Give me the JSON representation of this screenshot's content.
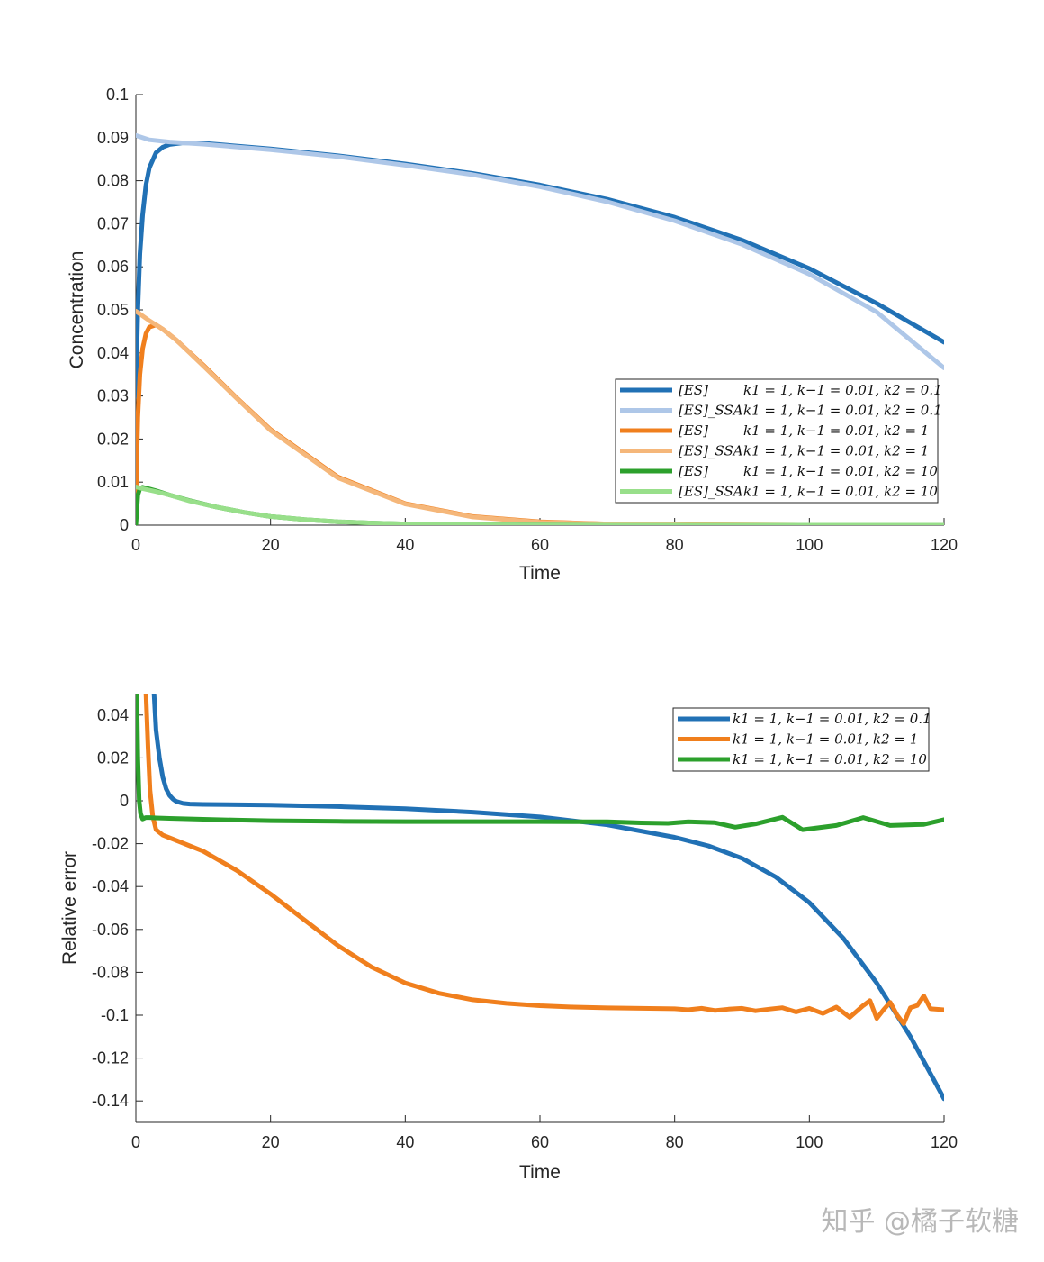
{
  "chart_data": [
    {
      "type": "line",
      "xlabel": "Time",
      "ylabel": "Concentration",
      "xlim": [
        0,
        120
      ],
      "ylim": [
        0,
        0.1
      ],
      "xticks": [
        "0",
        "20",
        "40",
        "60",
        "80",
        "100",
        "120"
      ],
      "yticks": [
        "0",
        "0.01",
        "0.02",
        "0.03",
        "0.04",
        "0.05",
        "0.06",
        "0.07",
        "0.08",
        "0.09",
        "0.1"
      ],
      "legend_position": "right",
      "series": [
        {
          "name": "[ES]",
          "params": "k1 = 1, k−1 = 0.01, k2 = 0.1",
          "color": "#2171b5",
          "x": [
            0,
            0.3,
            0.6,
            1,
            1.5,
            2,
            3,
            4,
            5,
            7,
            10,
            20,
            30,
            40,
            50,
            60,
            70,
            80,
            90,
            100,
            110,
            120
          ],
          "y": [
            0.03,
            0.05,
            0.063,
            0.072,
            0.079,
            0.083,
            0.0865,
            0.0878,
            0.0884,
            0.0888,
            0.0887,
            0.0874,
            0.0858,
            0.0839,
            0.0817,
            0.079,
            0.0757,
            0.0715,
            0.0662,
            0.0596,
            0.0515,
            0.0425
          ]
        },
        {
          "name": "[ES]_SSA",
          "params": "k1 = 1, k−1 = 0.01, k2 = 0.1",
          "color": "#aec7e8",
          "x": [
            0,
            2,
            5,
            10,
            20,
            30,
            40,
            50,
            60,
            70,
            80,
            90,
            100,
            110,
            120
          ],
          "y": [
            0.0905,
            0.0895,
            0.089,
            0.0885,
            0.0872,
            0.0856,
            0.0836,
            0.0814,
            0.0786,
            0.0751,
            0.0707,
            0.0652,
            0.0583,
            0.0495,
            0.0365
          ]
        },
        {
          "name": "[ES]",
          "params": "k1 = 1, k−1 = 0.01, k2 = 1",
          "color": "#f07f1d",
          "x": [
            0,
            0.3,
            0.6,
            1,
            1.5,
            2,
            3,
            4,
            6,
            10,
            15,
            20,
            30,
            40,
            50,
            60,
            70,
            80,
            90,
            100,
            110,
            120
          ],
          "y": [
            0.005,
            0.025,
            0.035,
            0.041,
            0.0445,
            0.046,
            0.0465,
            0.0455,
            0.043,
            0.0372,
            0.0295,
            0.0222,
            0.0112,
            0.005,
            0.002,
            0.0008,
            0.0003,
            0.0001,
            4e-05,
            1e-05,
            0,
            0
          ]
        },
        {
          "name": "[ES]_SSA",
          "params": "k1 = 1, k−1 = 0.01, k2 = 1",
          "color": "#f5b77a",
          "x": [
            0,
            2,
            4,
            6,
            10,
            15,
            20,
            30,
            40,
            50,
            60,
            70,
            80,
            90,
            100,
            110,
            120
          ],
          "y": [
            0.0497,
            0.0475,
            0.0455,
            0.043,
            0.037,
            0.0294,
            0.022,
            0.011,
            0.0049,
            0.0019,
            0.0007,
            0.00025,
            0.0001,
            3e-05,
            1e-05,
            0,
            0
          ]
        },
        {
          "name": "[ES]",
          "params": "k1 = 1, k−1 = 0.01, k2 = 10",
          "color": "#2ca02c",
          "x": [
            0,
            0.3,
            0.6,
            1,
            2,
            3,
            5,
            8,
            12,
            16,
            20,
            25,
            30,
            35,
            40,
            50,
            60,
            70,
            80,
            90,
            100,
            110,
            120
          ],
          "y": [
            0,
            0.007,
            0.0085,
            0.0088,
            0.0084,
            0.008,
            0.007,
            0.0057,
            0.0042,
            0.003,
            0.002,
            0.0013,
            0.0008,
            0.0005,
            0.0003,
            0.0001,
            4e-05,
            1e-05,
            0,
            0,
            0,
            0,
            0
          ]
        },
        {
          "name": "[ES]_SSA",
          "params": "k1 = 1, k−1 = 0.01, k2 = 10",
          "color": "#98df8a",
          "x": [
            0,
            1,
            3,
            5,
            8,
            12,
            16,
            20,
            25,
            30,
            35,
            40,
            50,
            60,
            70,
            80,
            90,
            100,
            110,
            120
          ],
          "y": [
            0.0089,
            0.0085,
            0.0078,
            0.007,
            0.0056,
            0.0042,
            0.003,
            0.002,
            0.0013,
            0.0008,
            0.0005,
            0.0003,
            0.0001,
            4e-05,
            1e-05,
            0,
            0,
            0,
            0,
            0
          ]
        }
      ]
    },
    {
      "type": "line",
      "xlabel": "Time",
      "ylabel": "Relative error",
      "xlim": [
        0,
        120
      ],
      "ylim": [
        -0.15,
        0.05
      ],
      "xticks": [
        "0",
        "20",
        "40",
        "60",
        "80",
        "100",
        "120"
      ],
      "yticks": [
        "-0.14",
        "-0.12",
        "-0.1",
        "-0.08",
        "-0.06",
        "-0.04",
        "-0.02",
        "0",
        "0.02",
        "0.04"
      ],
      "legend_position": "top-right",
      "series": [
        {
          "name": "k1 = 1, k−1 = 0.01, k2 = 0.1",
          "color": "#2171b5",
          "x": [
            2.7,
            3,
            3.5,
            4,
            4.5,
            5,
            5.5,
            6,
            7,
            8,
            10,
            20,
            30,
            40,
            50,
            60,
            70,
            80,
            85,
            90,
            95,
            100,
            105,
            110,
            115,
            120
          ],
          "y": [
            0.05,
            0.033,
            0.02,
            0.011,
            0.0055,
            0.0025,
            0.0008,
            -0.0003,
            -0.0012,
            -0.0015,
            -0.0017,
            -0.002,
            -0.0027,
            -0.0037,
            -0.0053,
            -0.0075,
            -0.0112,
            -0.017,
            -0.021,
            -0.0268,
            -0.0355,
            -0.0475,
            -0.064,
            -0.085,
            -0.11,
            -0.139
          ]
        },
        {
          "name": "k1 = 1, k−1 = 0.01, k2 = 1",
          "color": "#f07f1d",
          "x": [
            1.5,
            1.8,
            2.1,
            2.5,
            3,
            4,
            6,
            10,
            15,
            20,
            25,
            30,
            35,
            40,
            45,
            50,
            55,
            60,
            65,
            70,
            75,
            80,
            82,
            84,
            86,
            88,
            90,
            92,
            94,
            96,
            98,
            100,
            102,
            104,
            106,
            108,
            109,
            110,
            111,
            112,
            113,
            114,
            115,
            116,
            117,
            118,
            120
          ],
          "y": [
            0.05,
            0.025,
            0.005,
            -0.007,
            -0.0135,
            -0.016,
            -0.0185,
            -0.0235,
            -0.0325,
            -0.0435,
            -0.0555,
            -0.0675,
            -0.0775,
            -0.085,
            -0.0898,
            -0.0928,
            -0.0945,
            -0.0956,
            -0.0962,
            -0.0966,
            -0.0968,
            -0.097,
            -0.0975,
            -0.0968,
            -0.0978,
            -0.0972,
            -0.0968,
            -0.098,
            -0.0972,
            -0.0965,
            -0.0985,
            -0.0968,
            -0.0992,
            -0.0962,
            -0.101,
            -0.0955,
            -0.0932,
            -0.1015,
            -0.0975,
            -0.094,
            -0.0998,
            -0.104,
            -0.0965,
            -0.0955,
            -0.091,
            -0.097,
            -0.0975
          ]
        },
        {
          "name": "k1 = 1, k−1 = 0.01, k2 = 10",
          "color": "#2ca02c",
          "x": [
            0.15,
            0.3,
            0.5,
            0.7,
            1,
            1.5,
            2,
            3,
            5,
            10,
            15,
            20,
            30,
            40,
            50,
            60,
            70,
            75,
            79,
            82,
            86,
            89,
            92,
            96,
            99,
            104,
            108,
            112,
            117,
            120
          ],
          "y": [
            0.05,
            0.02,
            0,
            -0.006,
            -0.0085,
            -0.0078,
            -0.0078,
            -0.008,
            -0.0082,
            -0.0086,
            -0.009,
            -0.0093,
            -0.0096,
            -0.0097,
            -0.0097,
            -0.0097,
            -0.0098,
            -0.0103,
            -0.0105,
            -0.0098,
            -0.0102,
            -0.0123,
            -0.0108,
            -0.0077,
            -0.0135,
            -0.0115,
            -0.0078,
            -0.0115,
            -0.011,
            -0.0088
          ]
        }
      ]
    }
  ],
  "watermark": "知乎 @橘子软糖"
}
